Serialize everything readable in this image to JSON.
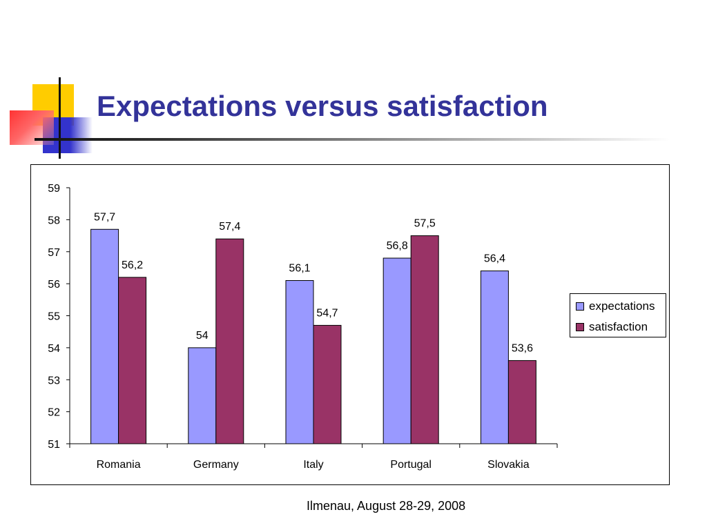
{
  "slide": {
    "title": "Expectations versus satisfaction",
    "footer": "Ilmenau, August 28-29, 2008"
  },
  "colors": {
    "title": "#333399",
    "expectations": "#9999FF",
    "satisfaction": "#993366"
  },
  "chart_data": {
    "type": "bar",
    "title": "",
    "xlabel": "",
    "ylabel": "",
    "categories": [
      "Romania",
      "Germany",
      "Italy",
      "Portugal",
      "Slovakia"
    ],
    "series": [
      {
        "name": "expectations",
        "values": [
          57.7,
          54,
          56.1,
          56.8,
          56.4
        ],
        "labels": [
          "57,7",
          "54",
          "56,1",
          "56,8",
          "56,4"
        ]
      },
      {
        "name": "satisfaction",
        "values": [
          56.2,
          57.4,
          54.7,
          57.5,
          53.6
        ],
        "labels": [
          "56,2",
          "57,4",
          "54,7",
          "57,5",
          "53,6"
        ]
      }
    ],
    "ylim": [
      51,
      59
    ],
    "yticks": [
      51,
      52,
      53,
      54,
      55,
      56,
      57,
      58,
      59
    ],
    "grid": false,
    "legend": "right"
  }
}
